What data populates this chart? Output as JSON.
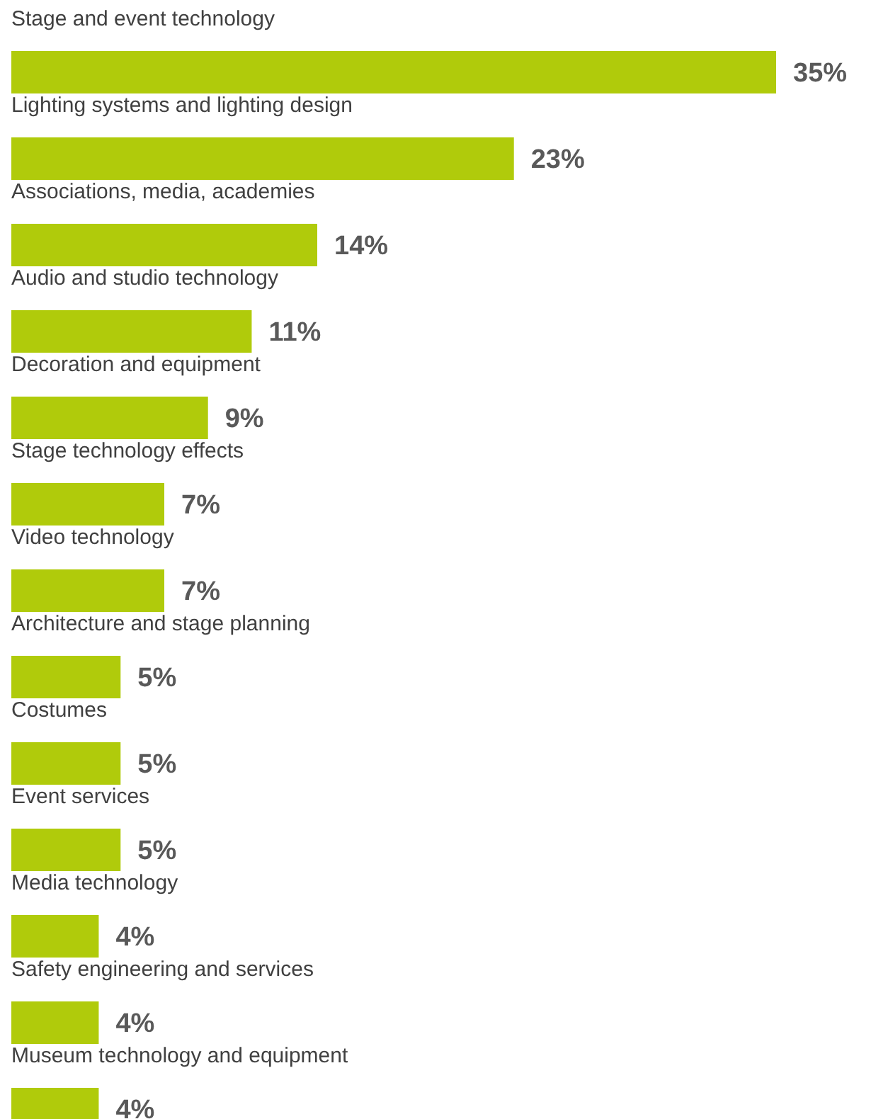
{
  "chart_data": {
    "type": "bar",
    "orientation": "horizontal",
    "categories": [
      "Stage and event technology",
      "Lighting systems and lighting design",
      "Associations, media, academies",
      "Audio and studio technology",
      "Decoration and equipment",
      "Stage technology effects",
      "Video technology",
      "Architecture and stage planning",
      "Costumes",
      "Event services",
      "Media technology",
      "Safety engineering and services",
      "Museum technology and equipment"
    ],
    "values": [
      35,
      23,
      14,
      11,
      9,
      7,
      7,
      5,
      5,
      5,
      4,
      4,
      4
    ],
    "value_labels": [
      "35%",
      "23%",
      "14%",
      "11%",
      "9%",
      "7%",
      "7%",
      "5%",
      "5%",
      "5%",
      "4%",
      "4%",
      "4%"
    ],
    "color": "#b0cb0b"
  }
}
